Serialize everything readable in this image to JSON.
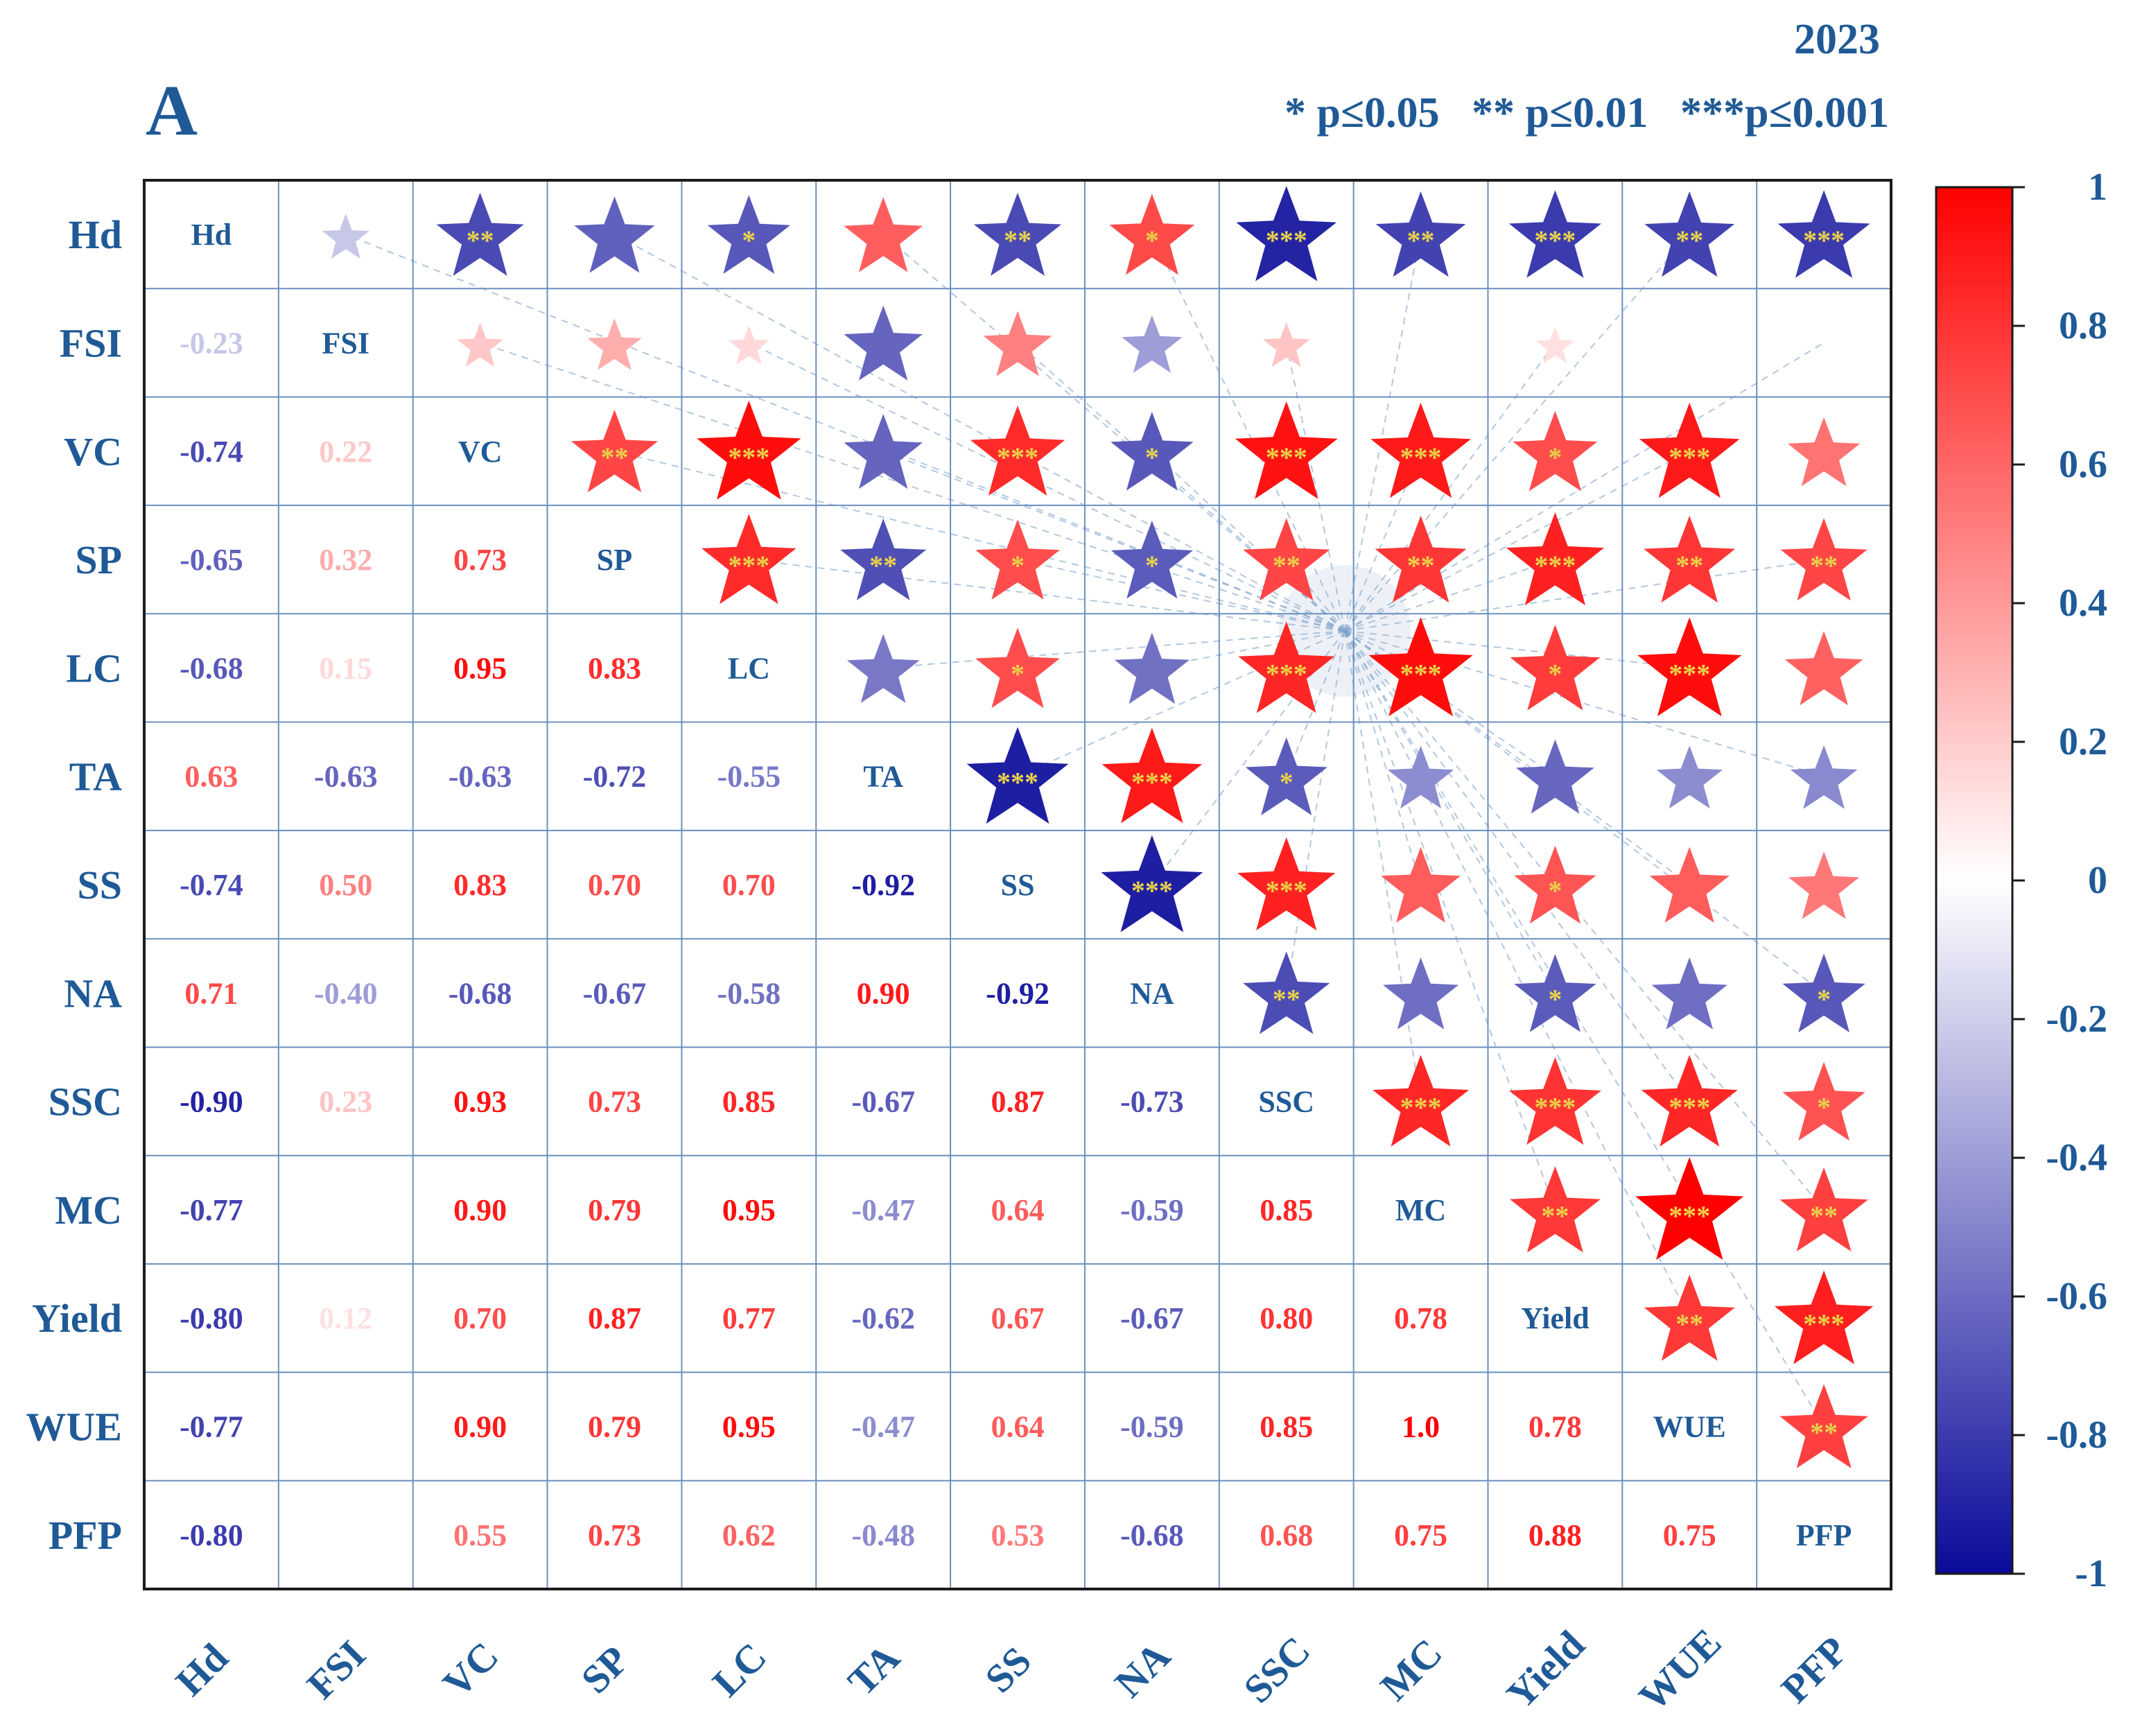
{
  "panel_label": "A",
  "year": "2023",
  "significance_legend": "* p≤0.05   ** p≤0.01   ***p≤0.001",
  "chart_data": {
    "type": "heatmap",
    "subtype": "correlation-matrix",
    "variables": [
      "Hd",
      "FSI",
      "VC",
      "SP",
      "LC",
      "TA",
      "SS",
      "NA",
      "SSC",
      "MC",
      "Yield",
      "WUE",
      "PFP"
    ],
    "lower_triangle_labels": [
      [],
      [
        "-0.23"
      ],
      [
        "-0.74",
        "0.22"
      ],
      [
        "-0.65",
        "0.32",
        "0.73"
      ],
      [
        "-0.68",
        "0.15",
        "0.95",
        "0.83"
      ],
      [
        "0.63",
        "-0.63",
        "-0.63",
        "-0.72",
        "-0.55"
      ],
      [
        "-0.74",
        "0.50",
        "0.83",
        "0.70",
        "0.70",
        "-0.92"
      ],
      [
        "0.71",
        "-0.40",
        "-0.68",
        "-0.67",
        "-0.58",
        "0.90",
        "-0.92"
      ],
      [
        "-0.90",
        "0.23",
        "0.93",
        "0.73",
        "0.85",
        "-0.67",
        "0.87",
        "-0.73"
      ],
      [
        "-0.77",
        "",
        "0.90",
        "0.79",
        "0.95",
        "-0.47",
        "0.64",
        "-0.59",
        "0.85"
      ],
      [
        "-0.80",
        "0.12",
        "0.70",
        "0.87",
        "0.77",
        "-0.62",
        "0.67",
        "-0.67",
        "0.80",
        "0.78"
      ],
      [
        "-0.77",
        "",
        "0.90",
        "0.79",
        "0.95",
        "-0.47",
        "0.64",
        "-0.59",
        "0.85",
        "1.0",
        "0.78"
      ],
      [
        "-0.80",
        "",
        "0.55",
        "0.73",
        "0.62",
        "-0.48",
        "0.53",
        "-0.68",
        "0.68",
        "0.75",
        "0.88",
        "0.75"
      ]
    ],
    "upper_triangle_significance": [
      [
        "",
        "",
        "**",
        "",
        "*",
        "",
        "**",
        "*",
        "***",
        "**",
        "***",
        "**",
        "***"
      ],
      [
        "",
        "",
        "",
        "",
        "",
        "",
        "",
        "",
        "",
        "",
        "",
        "",
        ""
      ],
      [
        "",
        "",
        "",
        "**",
        "***",
        "",
        "***",
        "*",
        "***",
        "***",
        "*",
        "***",
        ""
      ],
      [
        "",
        "",
        "",
        "",
        "***",
        "**",
        "*",
        "*",
        "**",
        "**",
        "***",
        "**",
        "**"
      ],
      [
        "",
        "",
        "",
        "",
        "",
        "",
        "*",
        "",
        "***",
        "***",
        "*",
        "***",
        ""
      ],
      [
        "",
        "",
        "",
        "",
        "",
        "",
        "***",
        "***",
        "*",
        "",
        "",
        "",
        ""
      ],
      [
        "",
        "",
        "",
        "",
        "",
        "",
        "",
        "***",
        "***",
        "",
        "*",
        "",
        ""
      ],
      [
        "",
        "",
        "",
        "",
        "",
        "",
        "",
        "",
        "**",
        "",
        "*",
        "",
        "*"
      ],
      [
        "",
        "",
        "",
        "",
        "",
        "",
        "",
        "",
        "",
        "***",
        "***",
        "***",
        "*"
      ],
      [
        "",
        "",
        "",
        "",
        "",
        "",
        "",
        "",
        "",
        "",
        "**",
        "***",
        "**"
      ],
      [
        "",
        "",
        "",
        "",
        "",
        "",
        "",
        "",
        "",
        "",
        "",
        "**",
        "***"
      ],
      [
        "",
        "",
        "",
        "",
        "",
        "",
        "",
        "",
        "",
        "",
        "",
        "",
        "**"
      ],
      [
        "",
        "",
        "",
        "",
        "",
        "",
        "",
        "",
        "",
        "",
        "",
        "",
        ""
      ]
    ],
    "colorbar": {
      "range": [
        -1,
        1
      ],
      "ticks": [
        "1",
        "0.8",
        "0.6",
        "0.4",
        "0.2",
        "0",
        "-0.2",
        "-0.4",
        "-0.6",
        "-0.8",
        "-1"
      ],
      "colors": {
        "negative": "#0a0a9a",
        "zero": "#ffffff",
        "positive": "#ff0000"
      }
    },
    "colors": {
      "text": "#1f5a96",
      "grid": "#6b8fbf",
      "star_marks": "#e8d24a"
    }
  }
}
